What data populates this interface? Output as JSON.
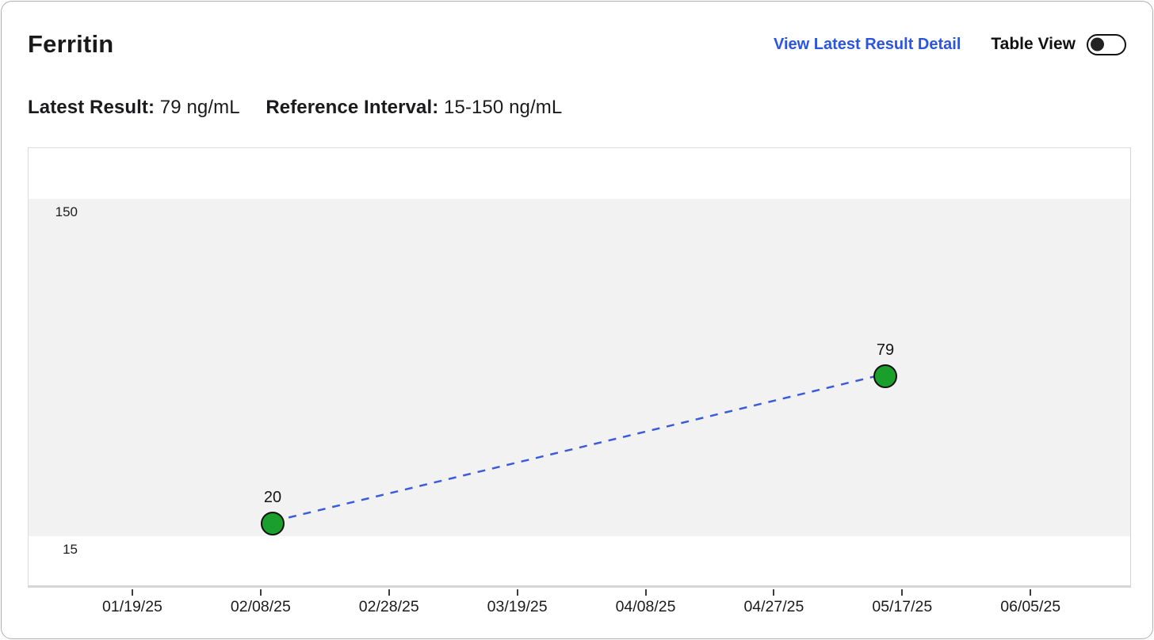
{
  "header": {
    "title": "Ferritin",
    "link_label": "View Latest Result Detail",
    "toggle_label": "Table View",
    "table_view_toggle_state": "off"
  },
  "summary": {
    "latest_result_label": "Latest Result:",
    "latest_result_value": "79 ng/mL",
    "reference_interval_label": "Reference Interval:",
    "reference_interval_value": "15-150 ng/mL"
  },
  "chart_data": {
    "type": "scatter",
    "title": "",
    "xlabel": "",
    "ylabel": "",
    "unit": "ng/mL",
    "reference_band": {
      "low": 15,
      "high": 150
    },
    "y_axis_labels": {
      "high": "150",
      "low": "15"
    },
    "x_ticks": [
      "01/19/25",
      "02/08/25",
      "02/28/25",
      "03/19/25",
      "04/08/25",
      "04/27/25",
      "05/17/25",
      "06/05/25"
    ],
    "points": [
      {
        "label": "20",
        "value": 20,
        "x_frac": 0.2213
      },
      {
        "label": "79",
        "value": 79,
        "x_frac": 0.7766
      }
    ],
    "line_style": "dashed",
    "legend": "none",
    "grid": "off"
  },
  "colors": {
    "point_green": "#1a9e2c",
    "trend_line_blue": "#3b5bdb",
    "link_blue": "#2b55e0",
    "reference_band_gray": "#f2f2f2"
  }
}
